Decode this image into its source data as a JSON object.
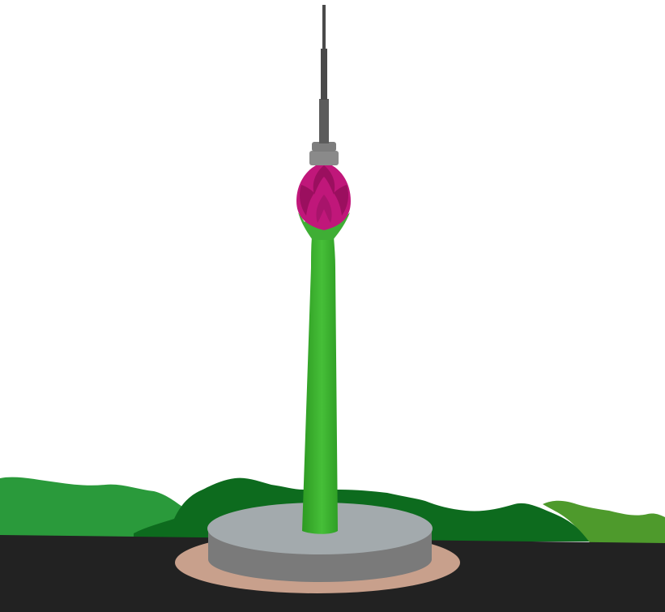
{
  "scene": {
    "subject": "lotus-tower",
    "colors": {
      "sky": "#ffffff",
      "road": "#222222",
      "bush_left": "#2a9a3b",
      "bush_center": "#0d6b1e",
      "bush_right": "#4e9a2c",
      "plaza_ring": "#c8a08c",
      "base_top": "#a3aaad",
      "base_side": "#7a7a7a",
      "shaft_light": "#46bf38",
      "shaft_dark": "#2d9a22",
      "sepal": "#3fae35",
      "petal": "#c0177a",
      "petal_dark": "#9b0f5f",
      "cap": "#8a8a8a",
      "mast": "#4a4a4a"
    }
  }
}
